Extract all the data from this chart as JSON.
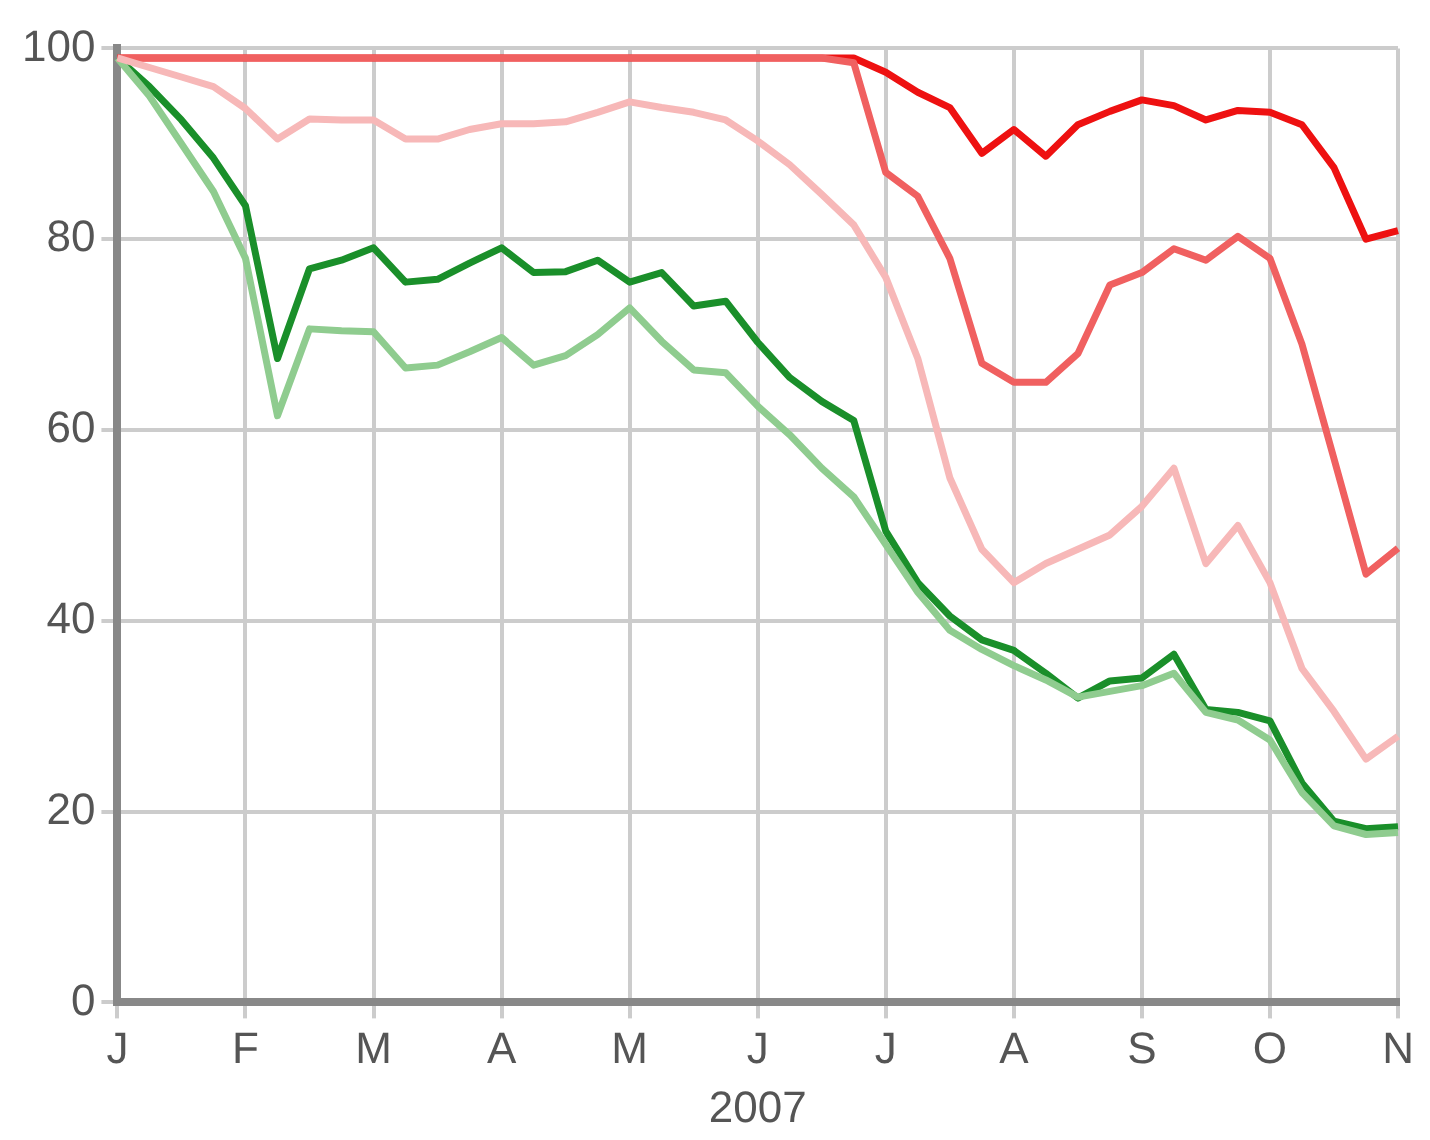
{
  "chart_data": {
    "type": "line",
    "xlabel": "2007",
    "grid": true,
    "legend": false,
    "marker": "none",
    "line_style": "solid",
    "categories": [
      "J",
      null,
      null,
      null,
      "F",
      null,
      null,
      null,
      "M",
      null,
      null,
      null,
      "A",
      null,
      null,
      null,
      "M",
      null,
      null,
      null,
      "J",
      null,
      null,
      null,
      "J",
      null,
      null,
      null,
      "A",
      null,
      null,
      null,
      "S",
      null,
      null,
      null,
      "O",
      null,
      null,
      null,
      "N"
    ],
    "ylim": [
      0,
      100
    ],
    "yticks": [
      0,
      20,
      40,
      60,
      80,
      100
    ],
    "series": [
      {
        "color": "#f7b8b8",
        "values": [
          99,
          98,
          97,
          96,
          93.7,
          90.5,
          92.6,
          92.5,
          92.5,
          90.5,
          90.5,
          91.5,
          92.1,
          92.1,
          92.3,
          93.3,
          94.4,
          93.8,
          93.3,
          92.5,
          90.3,
          87.8,
          84.7,
          81.5,
          76,
          67.5,
          55,
          47.5,
          44,
          46,
          47.5,
          49,
          52,
          56,
          46,
          50,
          44,
          35,
          30.5,
          25.5,
          27.9
        ]
      },
      {
        "color": "#f06060",
        "values": [
          99,
          99,
          99,
          99,
          99,
          99,
          99,
          99,
          99,
          99,
          99,
          99,
          99,
          99,
          99,
          99,
          99,
          99,
          99,
          99,
          99,
          99,
          99,
          98.5,
          87,
          84.5,
          78,
          67,
          65,
          65,
          68,
          75.2,
          76.5,
          79,
          77.8,
          80.3,
          78,
          69,
          57,
          44.9,
          47.6
        ]
      },
      {
        "color": "#ee1111",
        "values": [
          99,
          99,
          99,
          99,
          99,
          99,
          99,
          99,
          99,
          99,
          99,
          99,
          99,
          99,
          99,
          99,
          99,
          99,
          99,
          99,
          99,
          99,
          99,
          99,
          97.5,
          95.4,
          93.8,
          89,
          91.5,
          88.7,
          92,
          93.4,
          94.6,
          94,
          92.5,
          93.5,
          93.3,
          92,
          87.5,
          80,
          80.9
        ]
      },
      {
        "color": "#8fcc8f",
        "values": [
          99,
          95,
          90,
          85,
          78,
          61.5,
          70.6,
          70.4,
          70.3,
          66.5,
          66.8,
          68.2,
          69.7,
          66.8,
          67.8,
          70,
          72.8,
          69.3,
          66.3,
          66,
          62.5,
          59.5,
          56,
          53,
          48,
          43,
          39,
          37,
          35.3,
          33.8,
          32,
          32.6,
          33.2,
          34.5,
          30.4,
          29.6,
          27.5,
          22,
          18.5,
          17.6,
          17.8
        ]
      },
      {
        "color": "#1a8f2a",
        "values": [
          99,
          96,
          92.5,
          88.5,
          83.5,
          67.5,
          76.9,
          77.8,
          79.1,
          75.5,
          75.8,
          77.5,
          79.1,
          76.5,
          76.6,
          77.8,
          75.5,
          76.5,
          73,
          73.5,
          69.2,
          65.5,
          63,
          61,
          49.4,
          44,
          40.5,
          38,
          36.9,
          34.5,
          31.9,
          33.7,
          34,
          36.5,
          30.7,
          30.4,
          29.5,
          23,
          19,
          18.2,
          18.4
        ]
      }
    ]
  }
}
